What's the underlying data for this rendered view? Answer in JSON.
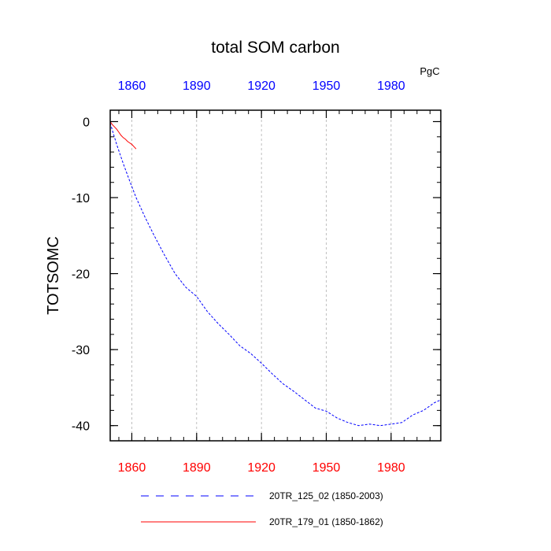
{
  "chart_data": {
    "type": "line",
    "title": "total SOM carbon",
    "ylabel": "TOTSOMC",
    "xlabel": "",
    "units_label": "PgC",
    "xlim": [
      1850,
      2003
    ],
    "ylim": [
      -42,
      1.5
    ],
    "x_ticks": [
      1860,
      1890,
      1920,
      1950,
      1980
    ],
    "x_tick_labels": [
      "1860",
      "1890",
      "1920",
      "1950",
      "1980"
    ],
    "y_ticks": [
      0,
      -10,
      -20,
      -30,
      -40
    ],
    "y_tick_labels": [
      "0",
      "-10",
      "-20",
      "-30",
      "-40"
    ],
    "bottom_axis_color": "#ff0000",
    "top_axis_color": "#0000ff",
    "grid": "vertical dashed at major x ticks",
    "series": [
      {
        "name": "20TR_125_02 (1850-2003)",
        "color": "#0000ff",
        "style": "dashed",
        "x": [
          1850,
          1853,
          1856,
          1859,
          1862,
          1866,
          1870,
          1875,
          1880,
          1885,
          1890,
          1895,
          1900,
          1905,
          1910,
          1915,
          1920,
          1925,
          1930,
          1935,
          1940,
          1945,
          1950,
          1955,
          1960,
          1965,
          1970,
          1975,
          1980,
          1985,
          1990,
          1995,
          2000,
          2003
        ],
        "values": [
          -0.2,
          -3.0,
          -5.5,
          -7.8,
          -10.0,
          -12.5,
          -14.8,
          -17.5,
          -20.0,
          -21.8,
          -23.0,
          -25.0,
          -26.6,
          -28.0,
          -29.5,
          -30.5,
          -31.8,
          -33.2,
          -34.5,
          -35.5,
          -36.6,
          -37.7,
          -38.1,
          -39.0,
          -39.6,
          -40.0,
          -39.8,
          -40.0,
          -39.8,
          -39.6,
          -38.6,
          -38.0,
          -37.0,
          -36.6
        ]
      },
      {
        "name": "20TR_179_01 (1850-1862)",
        "color": "#ff0000",
        "style": "solid",
        "x": [
          1850,
          1851,
          1852,
          1853,
          1854,
          1855,
          1856,
          1857,
          1858,
          1859,
          1860,
          1861,
          1862
        ],
        "values": [
          0.0,
          -0.4,
          -0.7,
          -1.0,
          -1.4,
          -1.8,
          -2.1,
          -2.3,
          -2.6,
          -2.8,
          -3.0,
          -3.3,
          -3.6
        ]
      }
    ]
  }
}
